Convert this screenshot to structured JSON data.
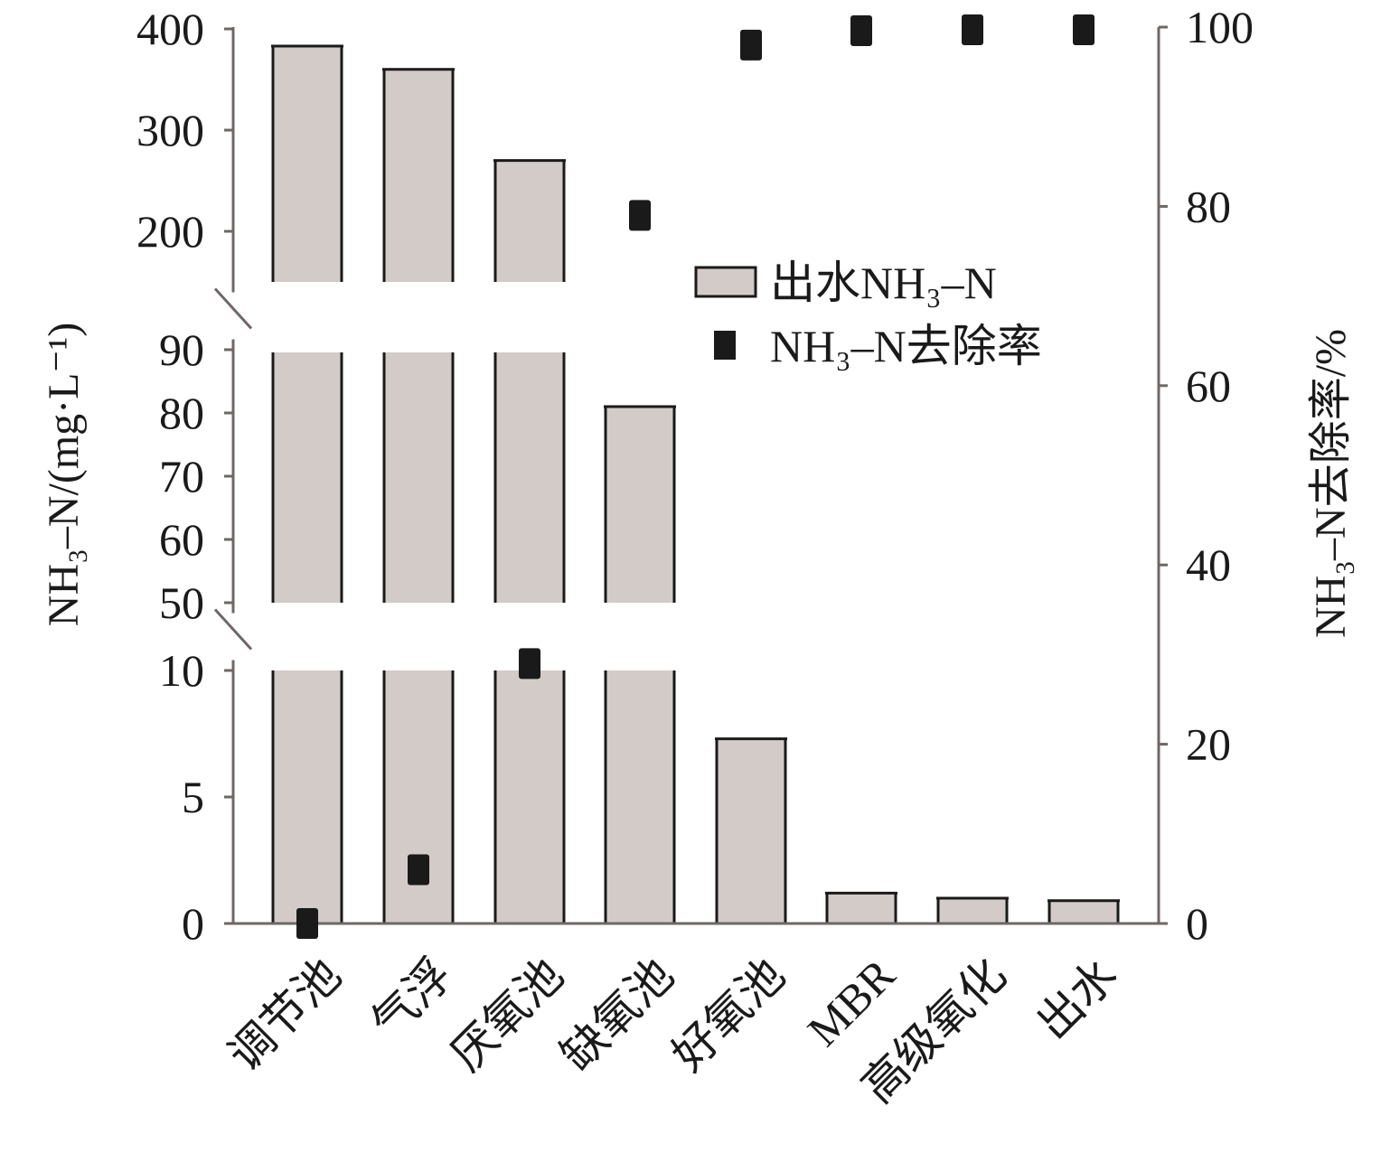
{
  "chart_data": {
    "type": "bar",
    "categories": [
      "调节池",
      "气浮",
      "厌氧池",
      "缺氧池",
      "好氧池",
      "MBR",
      "高级氧化",
      "出水"
    ],
    "series": [
      {
        "name": "出水NH₃–N",
        "axis": "left",
        "kind": "bar",
        "values": [
          383,
          360,
          270,
          81,
          7.3,
          1.2,
          1.0,
          0.9
        ]
      },
      {
        "name": "NH₃–N去除率",
        "axis": "right",
        "kind": "scatter",
        "values": [
          0,
          6,
          29,
          79,
          98,
          99.6,
          99.7,
          99.7
        ]
      }
    ],
    "y_left": {
      "label": "NH₃–N/(mg·L⁻¹)",
      "broken": true,
      "segments": [
        {
          "range": [
            0,
            10
          ],
          "ticks": [
            0,
            5,
            10
          ]
        },
        {
          "range": [
            50,
            90
          ],
          "ticks": [
            50,
            60,
            70,
            80,
            90
          ]
        },
        {
          "range": [
            150,
            400
          ],
          "ticks": [
            200,
            300,
            400
          ]
        }
      ]
    },
    "y_right": {
      "label": "NH₃–N去除率/%",
      "range": [
        0,
        100
      ],
      "ticks": [
        0,
        20,
        40,
        60,
        80,
        100
      ]
    },
    "legend": {
      "placement": "center-right",
      "entries": [
        "出水NH₃–N",
        "NH₃–N去除率"
      ]
    },
    "colors": {
      "bar": "#d2cbc8",
      "point": "#1a1a1a",
      "axis": "#6f6766"
    },
    "grid": false
  }
}
